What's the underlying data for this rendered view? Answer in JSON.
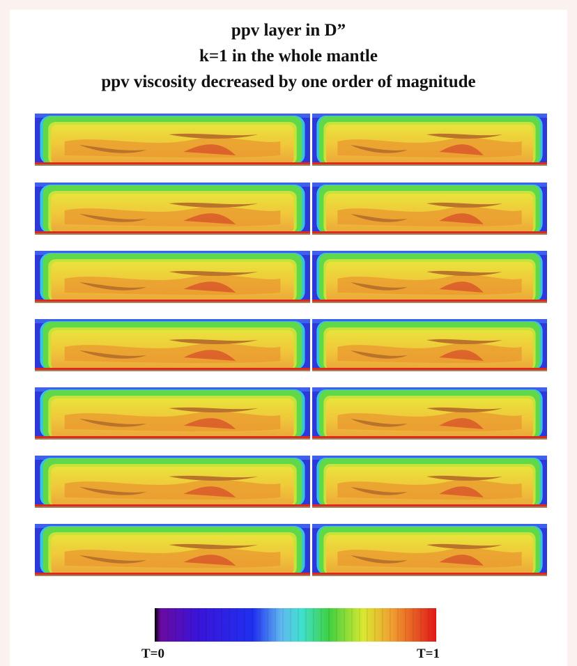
{
  "title": {
    "lines": [
      "ppv layer in D”",
      "k=1 in the whole mantle",
      "ppv viscosity decreased by one order of magnitude"
    ]
  },
  "colorbar": {
    "min_label": "T=0",
    "max_label": "T=1"
  }
}
